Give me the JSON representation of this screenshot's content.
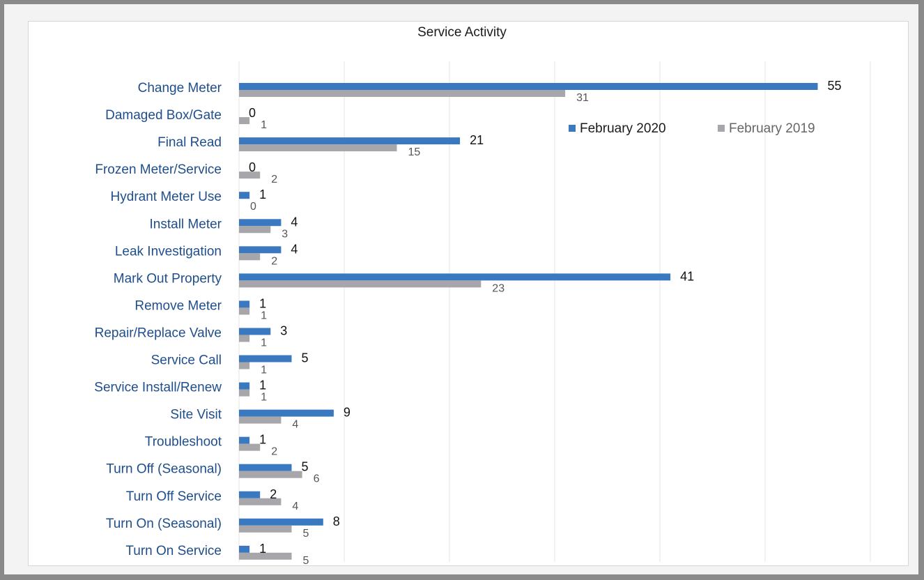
{
  "chart_data": {
    "type": "bar",
    "orientation": "horizontal",
    "title": "Service Activity",
    "categories": [
      "Change Meter",
      "Damaged Box/Gate",
      "Final Read",
      "Frozen Meter/Service",
      "Hydrant Meter Use",
      "Install Meter",
      "Leak Investigation",
      "Mark Out Property",
      "Remove Meter",
      "Repair/Replace Valve",
      "Service Call",
      "Service Install/Renew",
      "Site Visit",
      "Troubleshoot",
      "Turn Off (Seasonal)",
      "Turn Off Service",
      "Turn On (Seasonal)",
      "Turn On Service"
    ],
    "series": [
      {
        "name": "February 2020",
        "color": "#3a78bf",
        "values": [
          55,
          0,
          21,
          0,
          1,
          4,
          4,
          41,
          1,
          3,
          5,
          1,
          9,
          1,
          5,
          2,
          8,
          1
        ]
      },
      {
        "name": "February 2019",
        "color": "#a6a6ab",
        "values": [
          31,
          1,
          15,
          2,
          0,
          3,
          2,
          23,
          1,
          1,
          1,
          1,
          4,
          2,
          6,
          4,
          5,
          5
        ]
      }
    ],
    "xlim": [
      0,
      60
    ],
    "grid": true,
    "legend": "top-right",
    "category_label_color": "#1f4e8c"
  }
}
